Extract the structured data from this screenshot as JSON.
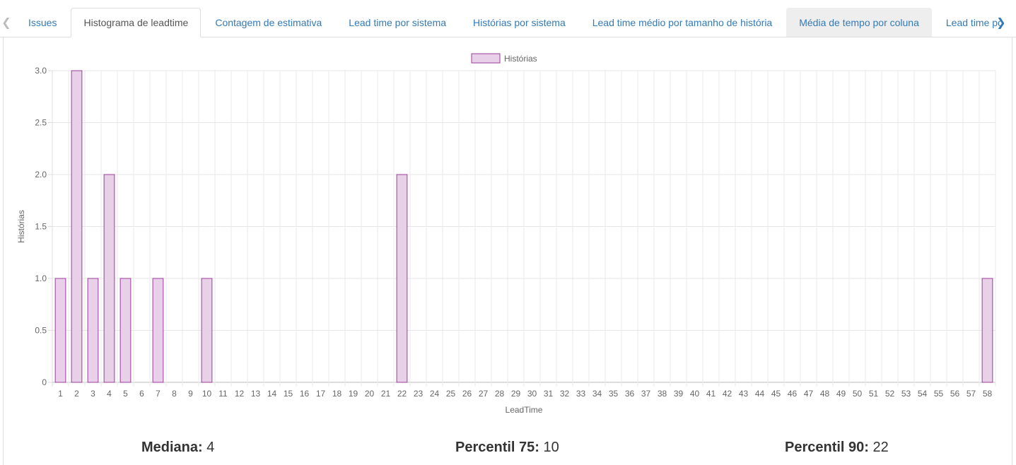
{
  "tabs": [
    {
      "label": "Issues",
      "state": "normal"
    },
    {
      "label": "Histograma de leadtime",
      "state": "active"
    },
    {
      "label": "Contagem de estimativa",
      "state": "normal"
    },
    {
      "label": "Lead time por sistema",
      "state": "normal"
    },
    {
      "label": "Histórias por sistema",
      "state": "normal"
    },
    {
      "label": "Lead time médio por tamanho de história",
      "state": "normal"
    },
    {
      "label": "Média de tempo por coluna",
      "state": "hover"
    },
    {
      "label": "Lead time po",
      "state": "normal"
    }
  ],
  "icons": {
    "scroll_left": "chevron-left-icon",
    "scroll_right": "chevron-right-icon"
  },
  "chart_data": {
    "type": "bar",
    "title": "",
    "xlabel": "LeadTime",
    "ylabel": "Histórias",
    "legend": {
      "position": "top-center"
    },
    "ylim": [
      0,
      3
    ],
    "yticks": [
      "0",
      "0.5",
      "1.0",
      "1.5",
      "2.0",
      "2.5",
      "3.0"
    ],
    "grid": true,
    "colors": {
      "fill": "#e8d0e8",
      "stroke": "#9b3d9b"
    },
    "categories": [
      "1",
      "2",
      "3",
      "4",
      "5",
      "6",
      "7",
      "8",
      "9",
      "10",
      "11",
      "12",
      "13",
      "14",
      "15",
      "16",
      "17",
      "18",
      "19",
      "20",
      "21",
      "22",
      "23",
      "24",
      "25",
      "26",
      "27",
      "28",
      "29",
      "30",
      "31",
      "32",
      "33",
      "34",
      "35",
      "36",
      "37",
      "38",
      "39",
      "40",
      "41",
      "42",
      "43",
      "44",
      "45",
      "46",
      "47",
      "48",
      "49",
      "50",
      "51",
      "52",
      "53",
      "54",
      "55",
      "56",
      "57",
      "58"
    ],
    "series": [
      {
        "name": "Histórias",
        "values": [
          1,
          3,
          1,
          2,
          1,
          0,
          1,
          0,
          0,
          1,
          0,
          0,
          0,
          0,
          0,
          0,
          0,
          0,
          0,
          0,
          0,
          2,
          0,
          0,
          0,
          0,
          0,
          0,
          0,
          0,
          0,
          0,
          0,
          0,
          0,
          0,
          0,
          0,
          0,
          0,
          0,
          0,
          0,
          0,
          0,
          0,
          0,
          0,
          0,
          0,
          0,
          0,
          0,
          0,
          0,
          0,
          0,
          1
        ]
      }
    ]
  },
  "stats": {
    "median_label": "Mediana:",
    "median_value": "4",
    "p75_label": "Percentil 75:",
    "p75_value": "10",
    "p90_label": "Percentil 90:",
    "p90_value": "22"
  }
}
